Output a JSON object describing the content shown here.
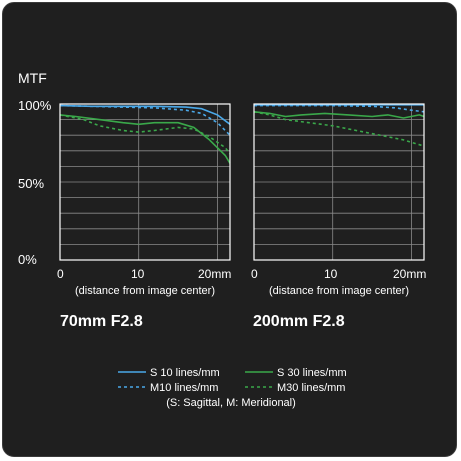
{
  "colors": {
    "background": "#1f1f1f",
    "grid": "#8a8a8a",
    "frame": "#ffffff",
    "text": "#ffffff",
    "s10": "#4aa8e8",
    "s30": "#3aa84a"
  },
  "mtf_label": "MTF",
  "y_ticks": [
    "100%",
    "50%",
    "0%"
  ],
  "x_axis_caption": "(distance from image center)",
  "legend": {
    "s10": "S 10 lines/mm",
    "m10": "M10 lines/mm",
    "s30": "S 30 lines/mm",
    "m30": "M30 lines/mm",
    "note": "(S: Sagittal, M: Meridional)"
  },
  "chart_data": [
    {
      "type": "line",
      "title": "70mm F2.8",
      "xlabel": "(distance from image center)",
      "ylabel": "MTF",
      "x_ticks": [
        "0",
        "10",
        "20mm"
      ],
      "xlim": [
        0,
        21.6
      ],
      "ylim": [
        0,
        100
      ],
      "grid": true,
      "series": [
        {
          "name": "S 10 lines/mm",
          "key": "s10",
          "dash": false,
          "points": [
            [
              0,
              99
            ],
            [
              4,
              98.5
            ],
            [
              8,
              98.5
            ],
            [
              12,
              98.5
            ],
            [
              16,
              98
            ],
            [
              18,
              97
            ],
            [
              20,
              93
            ],
            [
              21.6,
              87
            ]
          ]
        },
        {
          "name": "M10 lines/mm",
          "key": "m10",
          "dash": true,
          "points": [
            [
              0,
              99
            ],
            [
              4,
              98.5
            ],
            [
              8,
              98
            ],
            [
              12,
              97.5
            ],
            [
              16,
              96
            ],
            [
              18,
              94
            ],
            [
              20,
              88
            ],
            [
              21.6,
              80
            ]
          ]
        },
        {
          "name": "S 30 lines/mm",
          "key": "s30",
          "dash": false,
          "points": [
            [
              0,
              93
            ],
            [
              2,
              92
            ],
            [
              5,
              90
            ],
            [
              8,
              88
            ],
            [
              10,
              87
            ],
            [
              12,
              88
            ],
            [
              15,
              88
            ],
            [
              17,
              85
            ],
            [
              19,
              77
            ],
            [
              21,
              67
            ],
            [
              21.6,
              62
            ]
          ]
        },
        {
          "name": "M30 lines/mm",
          "key": "m30",
          "dash": true,
          "points": [
            [
              0,
              93
            ],
            [
              3,
              90
            ],
            [
              5,
              86
            ],
            [
              8,
              83
            ],
            [
              10,
              82
            ],
            [
              12,
              83
            ],
            [
              15,
              85
            ],
            [
              17,
              84
            ],
            [
              19,
              79
            ],
            [
              21,
              72
            ],
            [
              21.6,
              68
            ]
          ]
        }
      ]
    },
    {
      "type": "line",
      "title": "200mm F2.8",
      "xlabel": "(distance from image center)",
      "ylabel": "MTF",
      "x_ticks": [
        "0",
        "10",
        "20mm"
      ],
      "xlim": [
        0,
        21.6
      ],
      "ylim": [
        0,
        100
      ],
      "grid": true,
      "series": [
        {
          "name": "S 10 lines/mm",
          "key": "s10",
          "dash": false,
          "points": [
            [
              0,
              99.5
            ],
            [
              5,
              99.5
            ],
            [
              10,
              99.5
            ],
            [
              15,
              99.5
            ],
            [
              20,
              99.5
            ],
            [
              21.6,
              99.5
            ]
          ]
        },
        {
          "name": "M10 lines/mm",
          "key": "m10",
          "dash": true,
          "points": [
            [
              0,
              99
            ],
            [
              5,
              99
            ],
            [
              10,
              99
            ],
            [
              15,
              98.5
            ],
            [
              18,
              97.5
            ],
            [
              20,
              96
            ],
            [
              21.6,
              95
            ]
          ]
        },
        {
          "name": "S 30 lines/mm",
          "key": "s30",
          "dash": false,
          "points": [
            [
              0,
              95
            ],
            [
              2,
              94
            ],
            [
              4,
              92
            ],
            [
              6,
              93
            ],
            [
              9,
              94
            ],
            [
              12,
              93
            ],
            [
              15,
              92
            ],
            [
              17,
              93
            ],
            [
              19,
              91
            ],
            [
              21,
              93
            ],
            [
              21.6,
              92
            ]
          ]
        },
        {
          "name": "M30 lines/mm",
          "key": "m30",
          "dash": true,
          "points": [
            [
              0,
              95
            ],
            [
              2,
              93
            ],
            [
              4,
              90
            ],
            [
              7,
              88
            ],
            [
              10,
              86
            ],
            [
              13,
              83
            ],
            [
              16,
              80
            ],
            [
              19,
              77
            ],
            [
              21.6,
              73
            ]
          ]
        }
      ]
    }
  ]
}
